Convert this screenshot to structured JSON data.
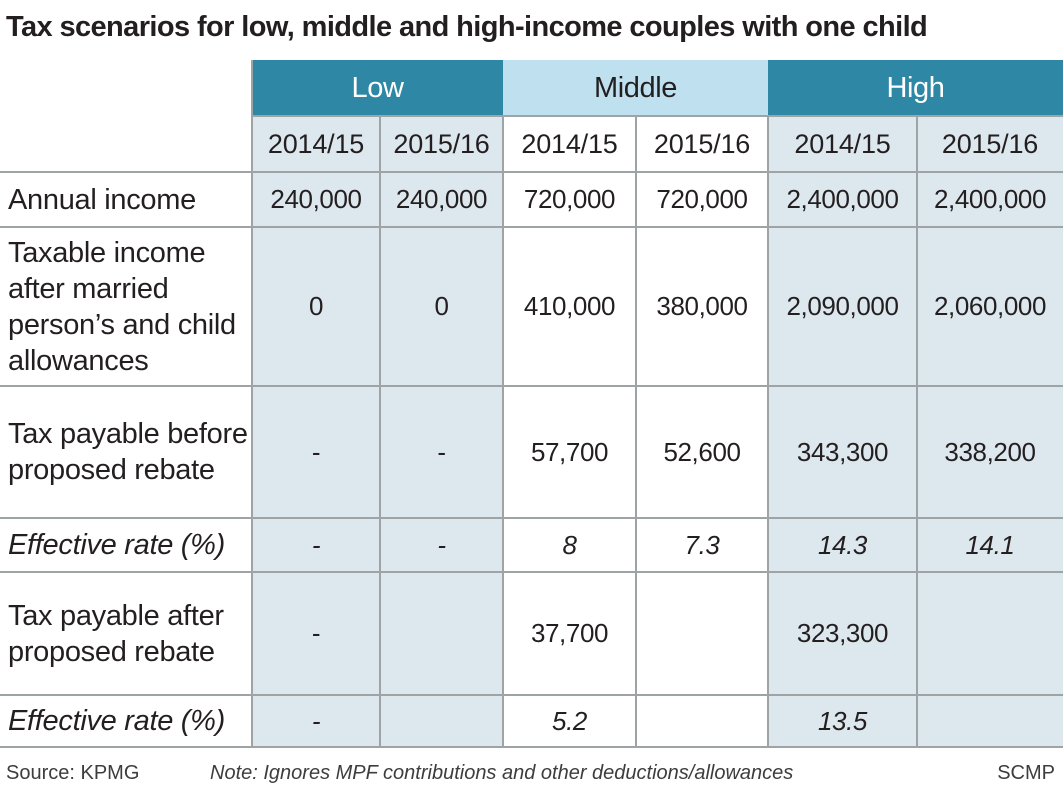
{
  "title": "Tax scenarios for low, middle and high-income couples with one child",
  "chart_data": {
    "type": "table",
    "column_groups": [
      {
        "label": "Low",
        "color": "#2e88a5"
      },
      {
        "label": "Middle",
        "color": "#bfe0ef"
      },
      {
        "label": "High",
        "color": "#2e88a5"
      }
    ],
    "years": [
      "2014/15",
      "2015/16",
      "2014/15",
      "2015/16",
      "2014/15",
      "2015/16"
    ],
    "rows": [
      {
        "label": "Annual income",
        "italic": false,
        "values": [
          "240,000",
          "240,000",
          "720,000",
          "720,000",
          "2,400,000",
          "2,400,000"
        ]
      },
      {
        "label": "Taxable income after married person’s and child allowances",
        "italic": false,
        "values": [
          "0",
          "0",
          "410,000",
          "380,000",
          "2,090,000",
          "2,060,000"
        ]
      },
      {
        "label": "Tax payable before proposed rebate",
        "italic": false,
        "values": [
          "-",
          "-",
          "57,700",
          "52,600",
          "343,300",
          "338,200"
        ]
      },
      {
        "label": "Effective rate (%)",
        "italic": true,
        "values": [
          "-",
          "-",
          "8",
          "7.3",
          "14.3",
          "14.1"
        ]
      },
      {
        "label": "Tax payable after proposed rebate",
        "italic": false,
        "values": [
          "-",
          "",
          "37,700",
          "",
          "323,300",
          ""
        ]
      },
      {
        "label": "Effective rate (%)",
        "italic": true,
        "values": [
          "-",
          "",
          "5.2",
          "",
          "13.5",
          ""
        ]
      }
    ]
  },
  "footer": {
    "source": "Source: KPMG",
    "note": "Note: Ignores MPF contributions and other deductions/allowances",
    "credit": "SCMP"
  }
}
